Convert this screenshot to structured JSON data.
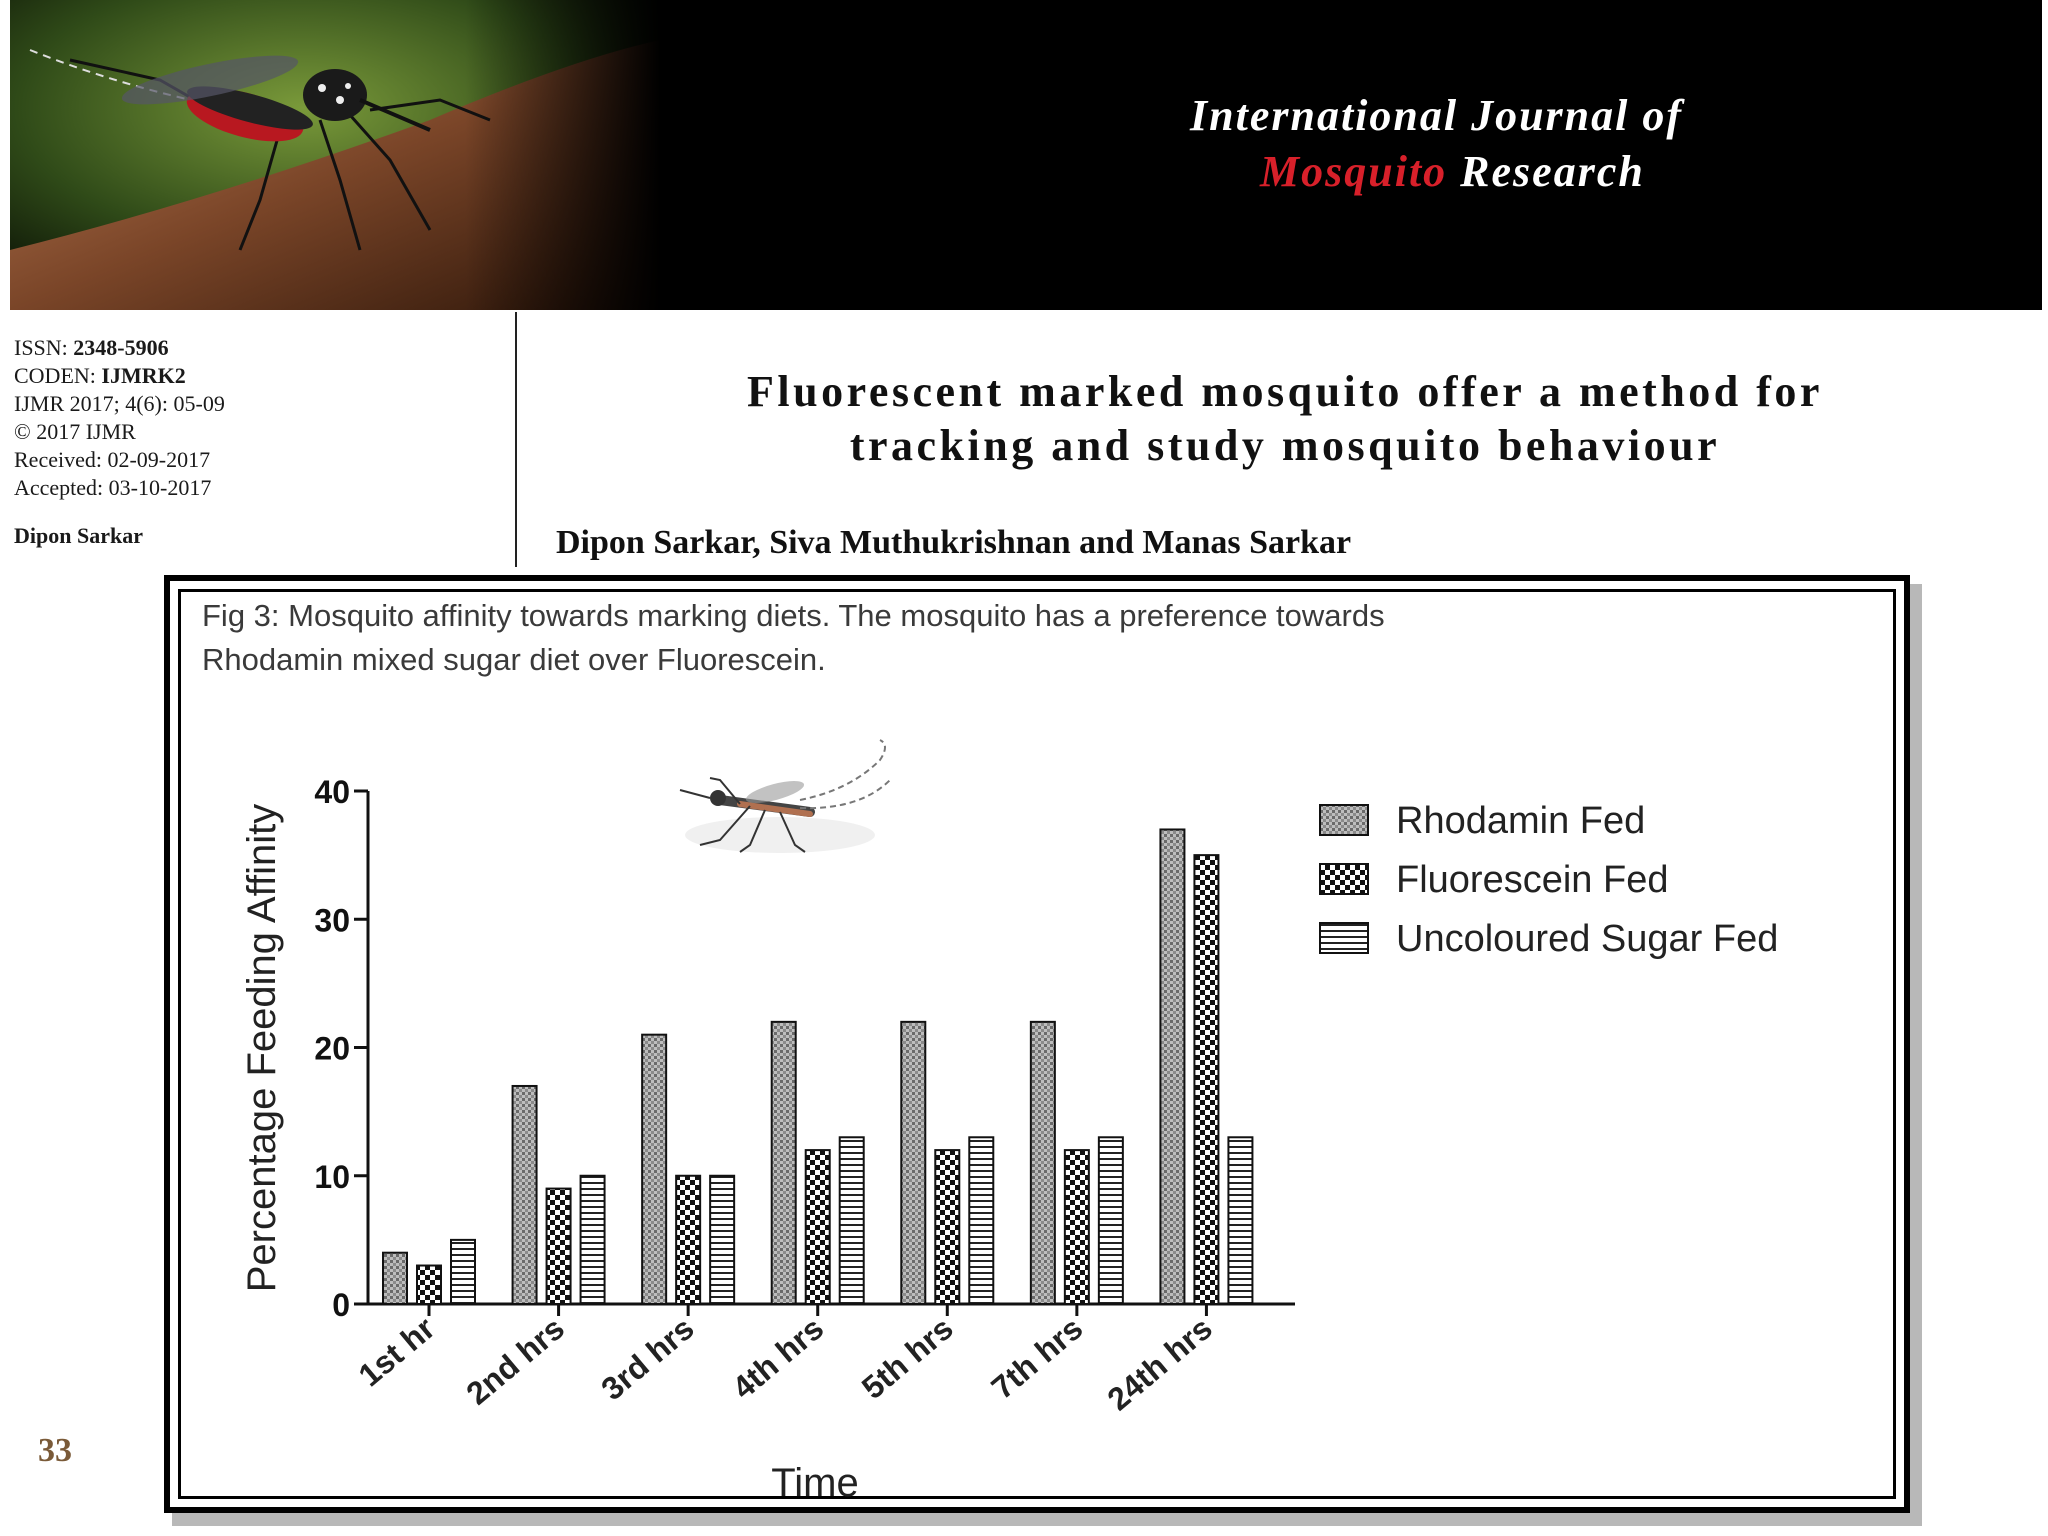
{
  "header": {
    "journal_line1": "International Journal of",
    "journal_red": "Mosquito",
    "journal_rest": " Research"
  },
  "meta": {
    "issn_label": "ISSN: ",
    "issn": "2348-5906",
    "coden_label": "CODEN: ",
    "coden": "IJMRK2",
    "citation": "IJMR 2017; 4(6): 05-09",
    "copyright": "© 2017 IJMR",
    "received": "Received: 02-09-2017",
    "accepted": "Accepted: 03-10-2017",
    "corresponding_author": "Dipon Sarkar"
  },
  "article": {
    "title_line1": "Fluorescent marked mosquito offer a method for",
    "title_line2": "tracking and study mosquito behaviour",
    "authors": "Dipon Sarkar, Siva Muthukrishnan and Manas Sarkar"
  },
  "figure": {
    "caption_line1": "Fig 3: Mosquito affinity towards marking diets. The mosquito has a preference towards",
    "caption_line2": "Rhodamin mixed sugar diet over Fluorescein."
  },
  "chart_data": {
    "type": "bar",
    "title": "",
    "xlabel": "Time",
    "ylabel": "Percentage Feeding Affinity",
    "ylim": [
      0,
      40
    ],
    "yticks": [
      0,
      10,
      20,
      30,
      40
    ],
    "categories": [
      "1st hr",
      "2nd hrs",
      "3rd hrs",
      "4th hrs",
      "5th hrs",
      "7th hrs",
      "24th hrs"
    ],
    "series": [
      {
        "name": "Rhodamin Fed",
        "pattern": "fine-dots",
        "values": [
          4,
          17,
          21,
          22,
          22,
          22,
          37
        ]
      },
      {
        "name": "Fluorescein Fed",
        "pattern": "checker",
        "values": [
          3,
          9,
          10,
          12,
          12,
          12,
          35
        ]
      },
      {
        "name": "Uncoloured Sugar Fed",
        "pattern": "horizontal-lines",
        "values": [
          5,
          10,
          10,
          13,
          13,
          13,
          13
        ]
      }
    ],
    "legend_position": "top-right",
    "grid": false
  },
  "footer": {
    "slide_number": "33"
  }
}
